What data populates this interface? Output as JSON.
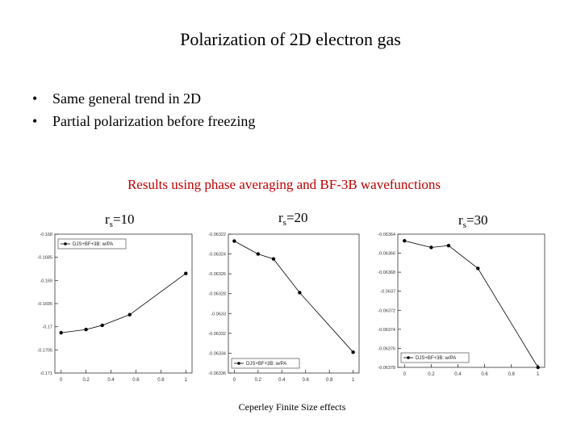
{
  "header": {
    "title": "Polarization of 2D electron gas"
  },
  "bullets": [
    "Same general trend in 2D",
    "Partial polarization before freezing"
  ],
  "subtitle": "Results using phase averaging and BF-3B wavefunctions",
  "plot_labels": [
    {
      "main": "r",
      "sub": "s",
      "rest": "=10"
    },
    {
      "main": "r",
      "sub": "s",
      "rest": "=20"
    },
    {
      "main": "r",
      "sub": "s",
      "rest": "=30"
    }
  ],
  "footer": "Ceperley Finite Size effects",
  "chart_data": [
    {
      "type": "line",
      "xlim": [
        -0.05,
        1.05
      ],
      "xticks": [
        0,
        0.2,
        0.4,
        0.6,
        0.8,
        1
      ],
      "ylim": [
        -0.171,
        -0.168
      ],
      "yticks": [
        -0.168,
        -0.1685,
        -0.169,
        -0.1695,
        -0.17,
        -0.1705,
        -0.171
      ],
      "legend": "upper left",
      "series": [
        {
          "name": "DJS+BF+3B: w/PA",
          "color": "#000000",
          "x": [
            0,
            0.2,
            0.33,
            0.55,
            1
          ],
          "values": [
            -0.17013,
            -0.17006,
            -0.16997,
            -0.16974,
            -0.16885
          ]
        }
      ]
    },
    {
      "type": "line",
      "xlim": [
        -0.05,
        1.05
      ],
      "xticks": [
        0,
        0.2,
        0.4,
        0.6,
        0.8,
        1
      ],
      "ylim": [
        -0.06336,
        -0.06322
      ],
      "yticks": [
        -0.06322,
        -0.06324,
        -0.06326,
        -0.06328,
        -0.0633,
        -0.06332,
        -0.06334,
        -0.06336
      ],
      "legend": "lower left",
      "series": [
        {
          "name": "DJS+BF+3B: w/PA",
          "color": "#000000",
          "x": [
            0,
            0.2,
            0.33,
            0.55,
            1
          ],
          "values": [
            -0.063227,
            -0.06324,
            -0.063245,
            -0.063279,
            -0.063339
          ]
        }
      ]
    },
    {
      "type": "line",
      "xlim": [
        -0.05,
        1.05
      ],
      "xticks": [
        0,
        0.2,
        0.4,
        0.6,
        0.8,
        1
      ],
      "ylim": [
        -0.06378,
        -0.06364
      ],
      "yticks": [
        -0.06364,
        -0.06366,
        -0.06368,
        -0.0637,
        -0.06372,
        -0.06374,
        -0.06376,
        -0.06378
      ],
      "legend": "lower left",
      "series": [
        {
          "name": "DJS+BF+3B: w/PA",
          "color": "#000000",
          "x": [
            0,
            0.2,
            0.33,
            0.55,
            1
          ],
          "values": [
            -0.063647,
            -0.063654,
            -0.063652,
            -0.063676,
            -0.06378
          ]
        }
      ]
    }
  ]
}
